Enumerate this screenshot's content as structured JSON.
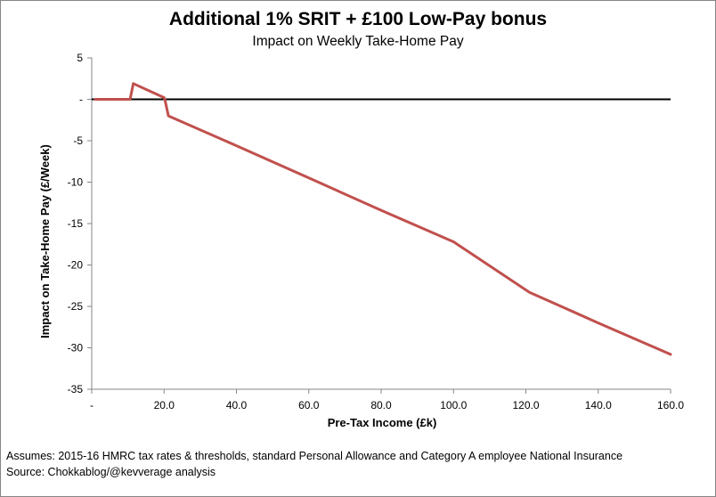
{
  "chart_data": {
    "type": "line",
    "title": "Additional 1% SRIT + £100 Low-Pay bonus",
    "subtitle": "Impact on Weekly Take-Home Pay",
    "xlabel": "Pre-Tax Income (£k)",
    "ylabel": "Impact on Take-Home Pay (£/Week)",
    "xlim": [
      0,
      160
    ],
    "ylim": [
      -35,
      5
    ],
    "x_ticks": [
      0,
      20,
      40,
      60,
      80,
      100,
      120,
      140,
      160
    ],
    "x_tick_labels": [
      "-",
      "20.0",
      "40.0",
      "60.0",
      "80.0",
      "100.0",
      "120.0",
      "140.0",
      "160.0"
    ],
    "y_ticks": [
      5,
      0,
      -5,
      -10,
      -15,
      -20,
      -25,
      -30,
      -35
    ],
    "y_tick_labels": [
      "5",
      "-",
      "-5",
      "-10",
      "-15",
      "-20",
      "-25",
      "-30",
      "-35"
    ],
    "grid": false,
    "legend": "none",
    "series": [
      {
        "color": "#c0504d",
        "x": [
          1,
          10.6,
          11.5,
          12,
          20,
          20.2,
          21.2,
          40,
          60,
          80,
          100,
          121,
          140,
          160
        ],
        "y": [
          0,
          0,
          1.9,
          1.8,
          0.2,
          0,
          -2,
          -5.6,
          -9.5,
          -13.4,
          -17.2,
          -23.3,
          -27,
          -30.8
        ]
      }
    ]
  },
  "footnotes": [
    "Assumes: 2015-16 HMRC tax rates & thresholds, standard Personal Allowance and Category A employee National Insurance",
    "Source: Chokkablog/@kevverage analysis"
  ]
}
